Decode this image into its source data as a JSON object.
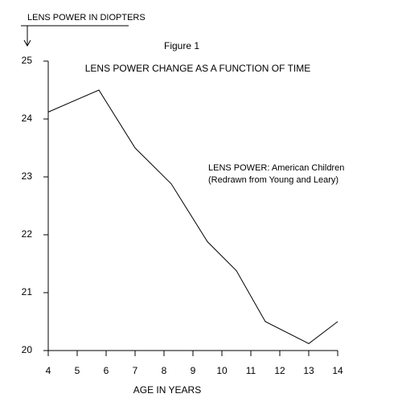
{
  "chart_data": {
    "type": "line",
    "title": "Figure 1",
    "subtitle": "LENS POWER CHANGE AS A FUNCTION OF TIME",
    "y_label": "LENS POWER IN DIOPTERS",
    "x_label": "AGE IN YEARS",
    "annotations": [
      "LENS POWER:  American Children",
      "(Redrawn from Young and Leary)"
    ],
    "x": [
      4,
      5.75,
      7,
      8.25,
      9.5,
      10.5,
      11.5,
      13,
      14
    ],
    "series": [
      {
        "color": "#000000",
        "values": [
          24.12,
          24.5,
          23.5,
          22.88,
          21.88,
          21.38,
          20.5,
          20.12,
          20.5
        ]
      }
    ],
    "xlim": [
      4,
      14
    ],
    "xticks": [
      4,
      5,
      6,
      7,
      8,
      9,
      10,
      11,
      12,
      13,
      14
    ],
    "ylim": [
      20,
      25
    ],
    "yticks": [
      20,
      21,
      22,
      23,
      24,
      25
    ]
  }
}
